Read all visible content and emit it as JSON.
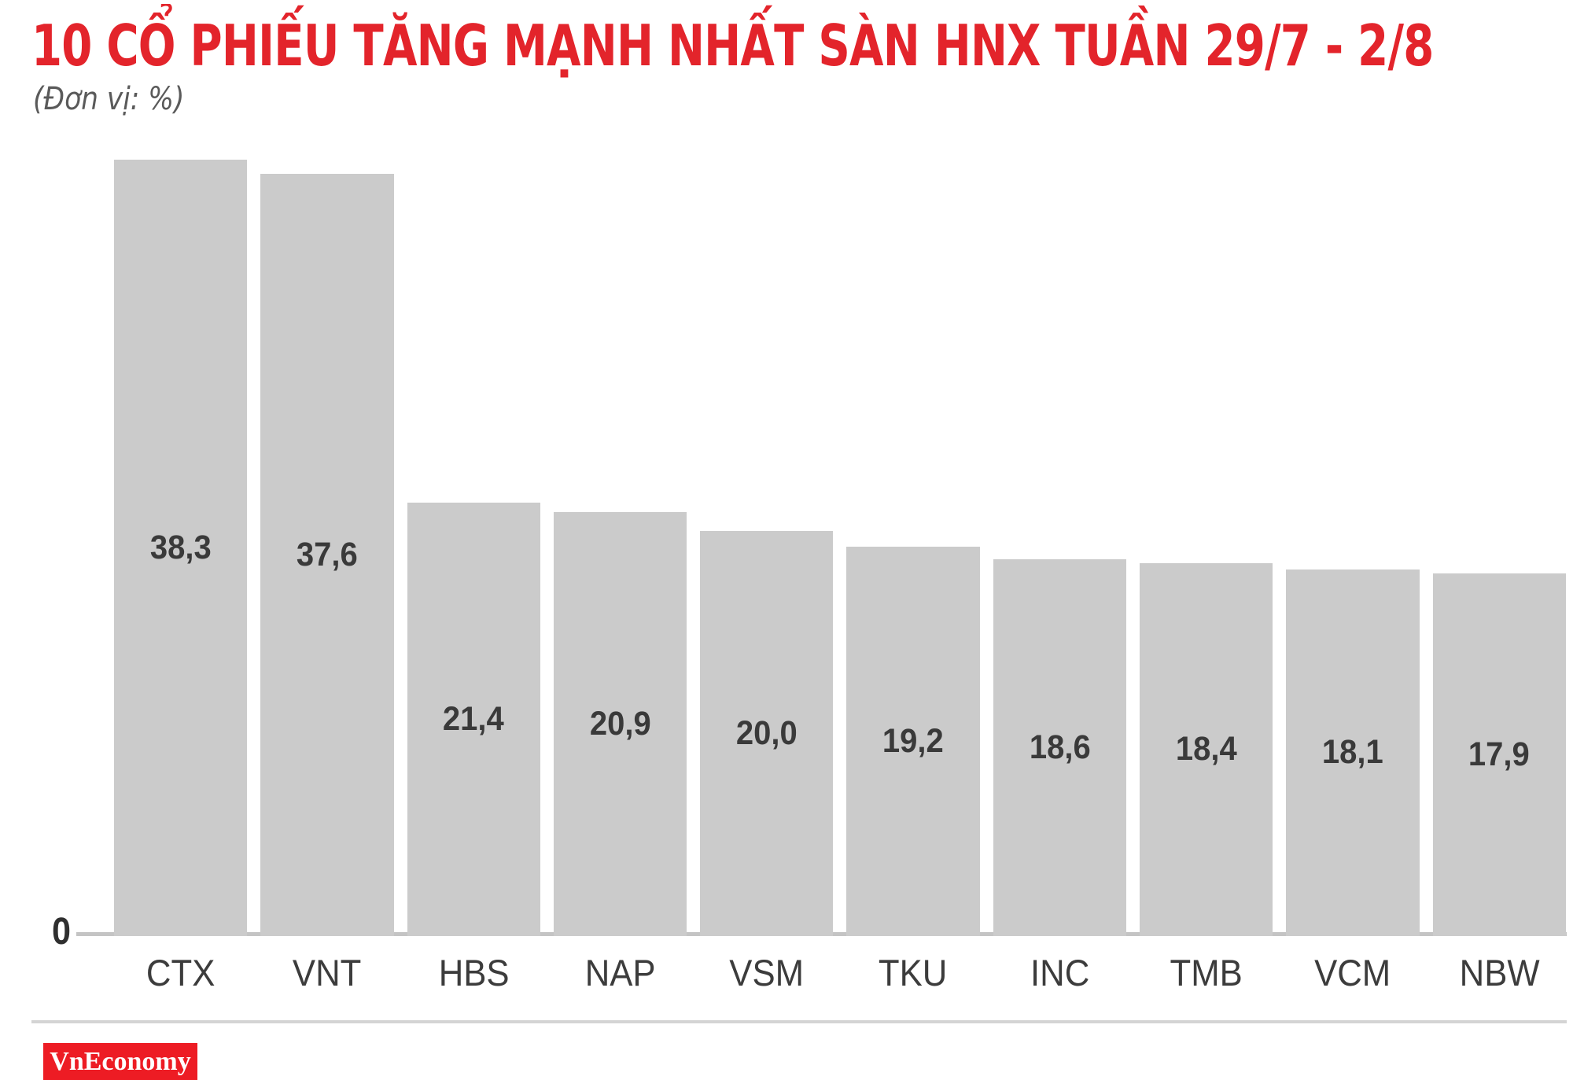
{
  "header": {
    "title": "10 CỔ PHIẾU TĂNG MẠNH NHẤT SÀN HNX TUẦN 29/7 - 2/8",
    "unit_note": "(Đơn vị: %)"
  },
  "chart_data": {
    "type": "bar",
    "orientation": "vertical",
    "title": "10 CỔ PHIẾU TĂNG MẠNH NHẤT SÀN HNX TUẦN 29/7 - 2/8",
    "xlabel": "",
    "ylabel": "%",
    "unit": "%",
    "categories": [
      "CTX",
      "VNT",
      "HBS",
      "NAP",
      "VSM",
      "TKU",
      "INC",
      "TMB",
      "VCM",
      "NBW"
    ],
    "values": [
      38.3,
      37.6,
      21.4,
      20.9,
      20.0,
      19.2,
      18.6,
      18.4,
      18.1,
      17.9
    ],
    "value_labels": [
      "38,3",
      "37,6",
      "21,4",
      "20,9",
      "20,0",
      "19,2",
      "18,6",
      "18,4",
      "18,1",
      "17,9"
    ],
    "ylim": [
      0,
      38.3
    ],
    "y_axis_ticks": [
      "0"
    ],
    "grid": false,
    "legend": false,
    "value_labels_position": "centered-inside-bars"
  },
  "axis": {
    "zero_label": "0"
  },
  "footer": {
    "logo_text": "VnEconomy"
  },
  "colors": {
    "background": "#ffffff",
    "title": "#e3242b",
    "subtitle": "#5a5a5a",
    "bar": "#cbcbcb",
    "bar_value_text": "#3a3a3a",
    "category_text": "#3c3c3c",
    "zero_tick_text": "#2f2f2f",
    "baseline": "#c4c4c4",
    "divider": "#d4d4d4",
    "logo_bg": "#ed1c24",
    "logo_text": "#ffffff"
  }
}
